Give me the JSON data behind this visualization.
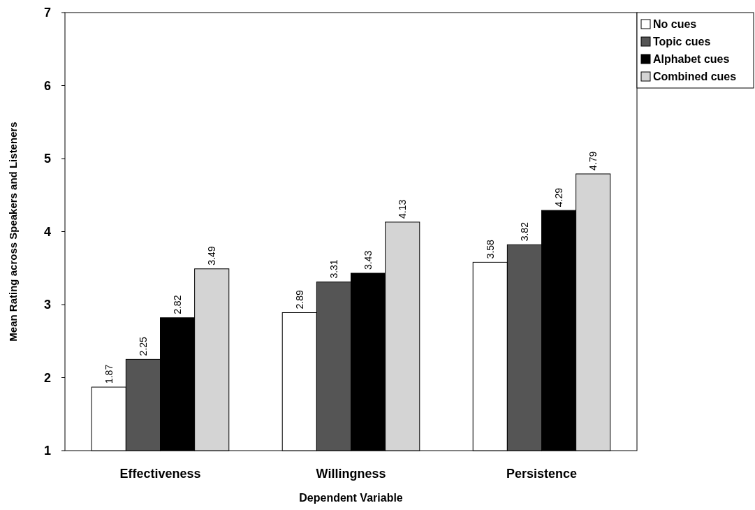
{
  "chart_data": {
    "type": "bar",
    "xlabel": "Dependent Variable",
    "ylabel": "Mean Rating across Speakers and Listeners",
    "categories": [
      "Effectiveness",
      "Willingness",
      "Persistence"
    ],
    "series": [
      {
        "name": "No cues",
        "color": "#ffffff",
        "values": [
          1.87,
          2.89,
          3.58
        ]
      },
      {
        "name": "Topic cues",
        "color": "#555555",
        "values": [
          2.25,
          3.31,
          3.82
        ]
      },
      {
        "name": "Alphabet cues",
        "color": "#000000",
        "values": [
          2.82,
          3.43,
          4.29
        ]
      },
      {
        "name": "Combined cues",
        "color": "#d4d4d4",
        "values": [
          3.49,
          4.13,
          4.79
        ]
      }
    ],
    "ylim": [
      1,
      7
    ],
    "yticks": [
      1,
      2,
      3,
      4,
      5,
      6,
      7
    ],
    "grid": false,
    "legend": "top right",
    "data_labels": true
  }
}
